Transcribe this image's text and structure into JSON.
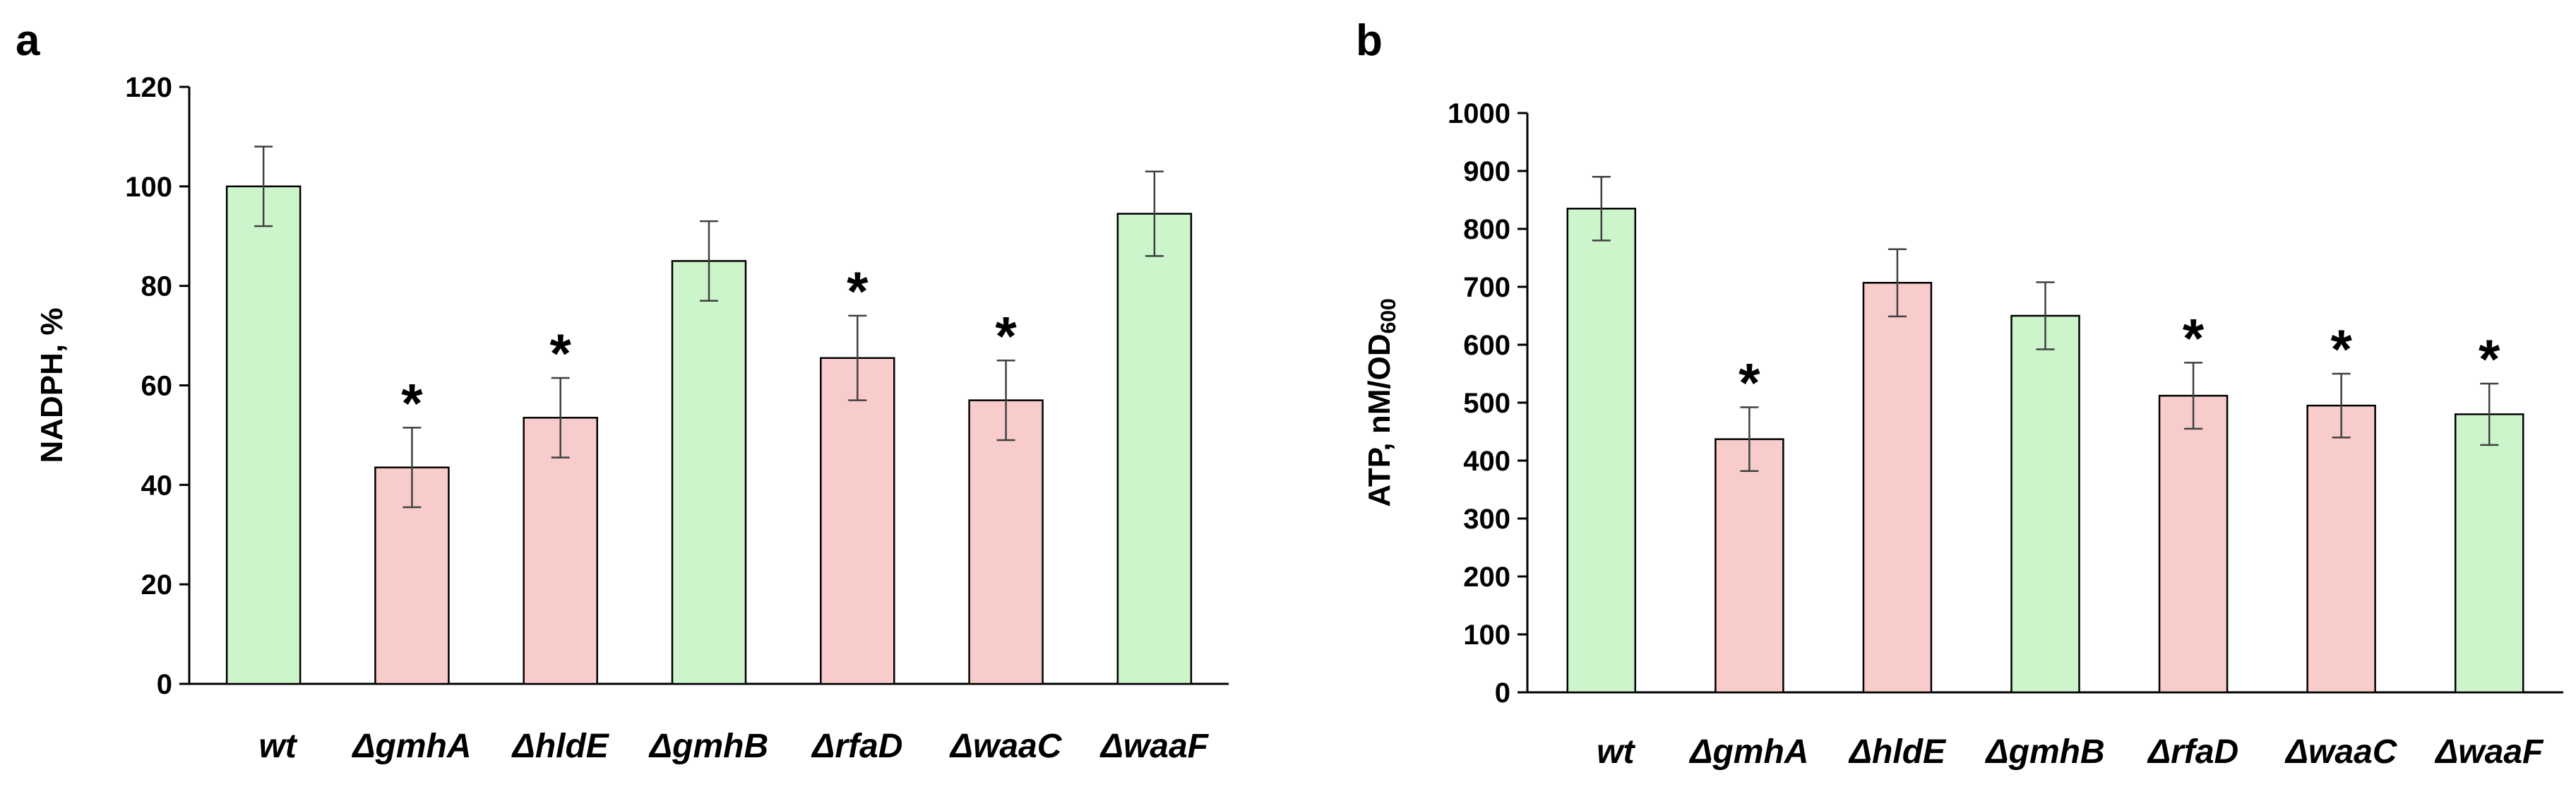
{
  "colors": {
    "green": "#ccf5cc",
    "pink": "#f9cccc",
    "stroke": "#000000",
    "errorbar": "#404040"
  },
  "chart_data": [
    {
      "type": "bar",
      "panel": "a",
      "ylabel_main": "NADPH, %",
      "ylabel_sub": "",
      "ylim": [
        0,
        120
      ],
      "yticks": [
        "0",
        "20",
        "40",
        "60",
        "80",
        "100",
        "120"
      ],
      "categories": [
        "wt",
        "ΔgmhA",
        "ΔhldE",
        "ΔgmhB",
        "ΔrfaD",
        "ΔwaaC",
        "ΔwaaF"
      ],
      "values": [
        100,
        43.5,
        53.5,
        85,
        65.5,
        57,
        94.5
      ],
      "errors": [
        8,
        8,
        8,
        8,
        8.5,
        8,
        8.5
      ],
      "significant": [
        false,
        true,
        true,
        false,
        true,
        true,
        false
      ],
      "bar_colors": [
        "green",
        "pink",
        "pink",
        "green",
        "pink",
        "pink",
        "green"
      ],
      "star_label": "*"
    },
    {
      "type": "bar",
      "panel": "b",
      "ylabel_main": "ATP, nM/OD",
      "ylabel_sub": "600",
      "ylim": [
        0,
        1000
      ],
      "yticks": [
        "0",
        "100",
        "200",
        "300",
        "400",
        "500",
        "600",
        "700",
        "800",
        "900",
        "1000"
      ],
      "categories": [
        "wt",
        "ΔgmhA",
        "ΔhldE",
        "ΔgmhB",
        "ΔrfaD",
        "ΔwaaC",
        "ΔwaaF"
      ],
      "values": [
        835,
        437,
        707,
        650,
        512,
        495,
        480
      ],
      "errors": [
        55,
        55,
        58,
        58,
        57,
        55,
        53
      ],
      "significant": [
        false,
        true,
        false,
        false,
        true,
        true,
        true
      ],
      "bar_colors": [
        "green",
        "pink",
        "pink",
        "green",
        "pink",
        "pink",
        "green"
      ],
      "star_label": "*"
    }
  ]
}
